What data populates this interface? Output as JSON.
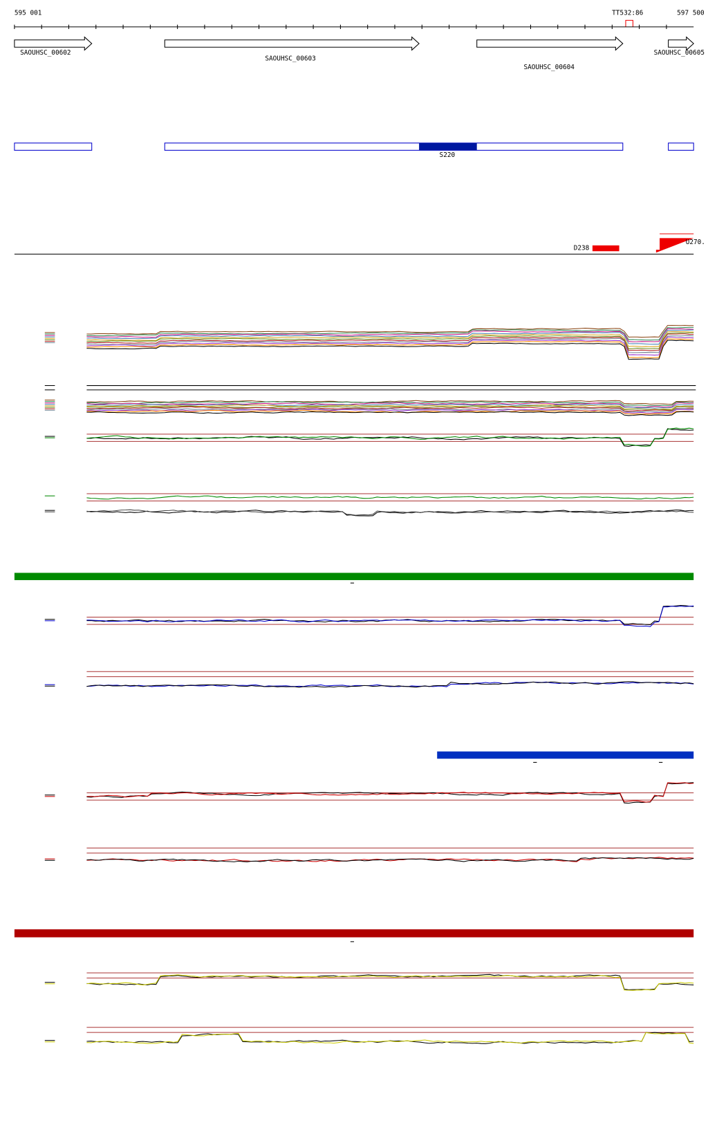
{
  "ruler": {
    "start": "595 001",
    "end": "597 500",
    "marker": "TT532:86"
  },
  "genes": [
    {
      "label": "SAOUHSC_00602"
    },
    {
      "label": "SAOUHSC_00603"
    },
    {
      "label": "SAOUHSC_00604"
    },
    {
      "label": "SAOUHSC_00605"
    }
  ],
  "features": {
    "segment": "S220",
    "downstream": "D238",
    "upstream": "U270."
  }
}
